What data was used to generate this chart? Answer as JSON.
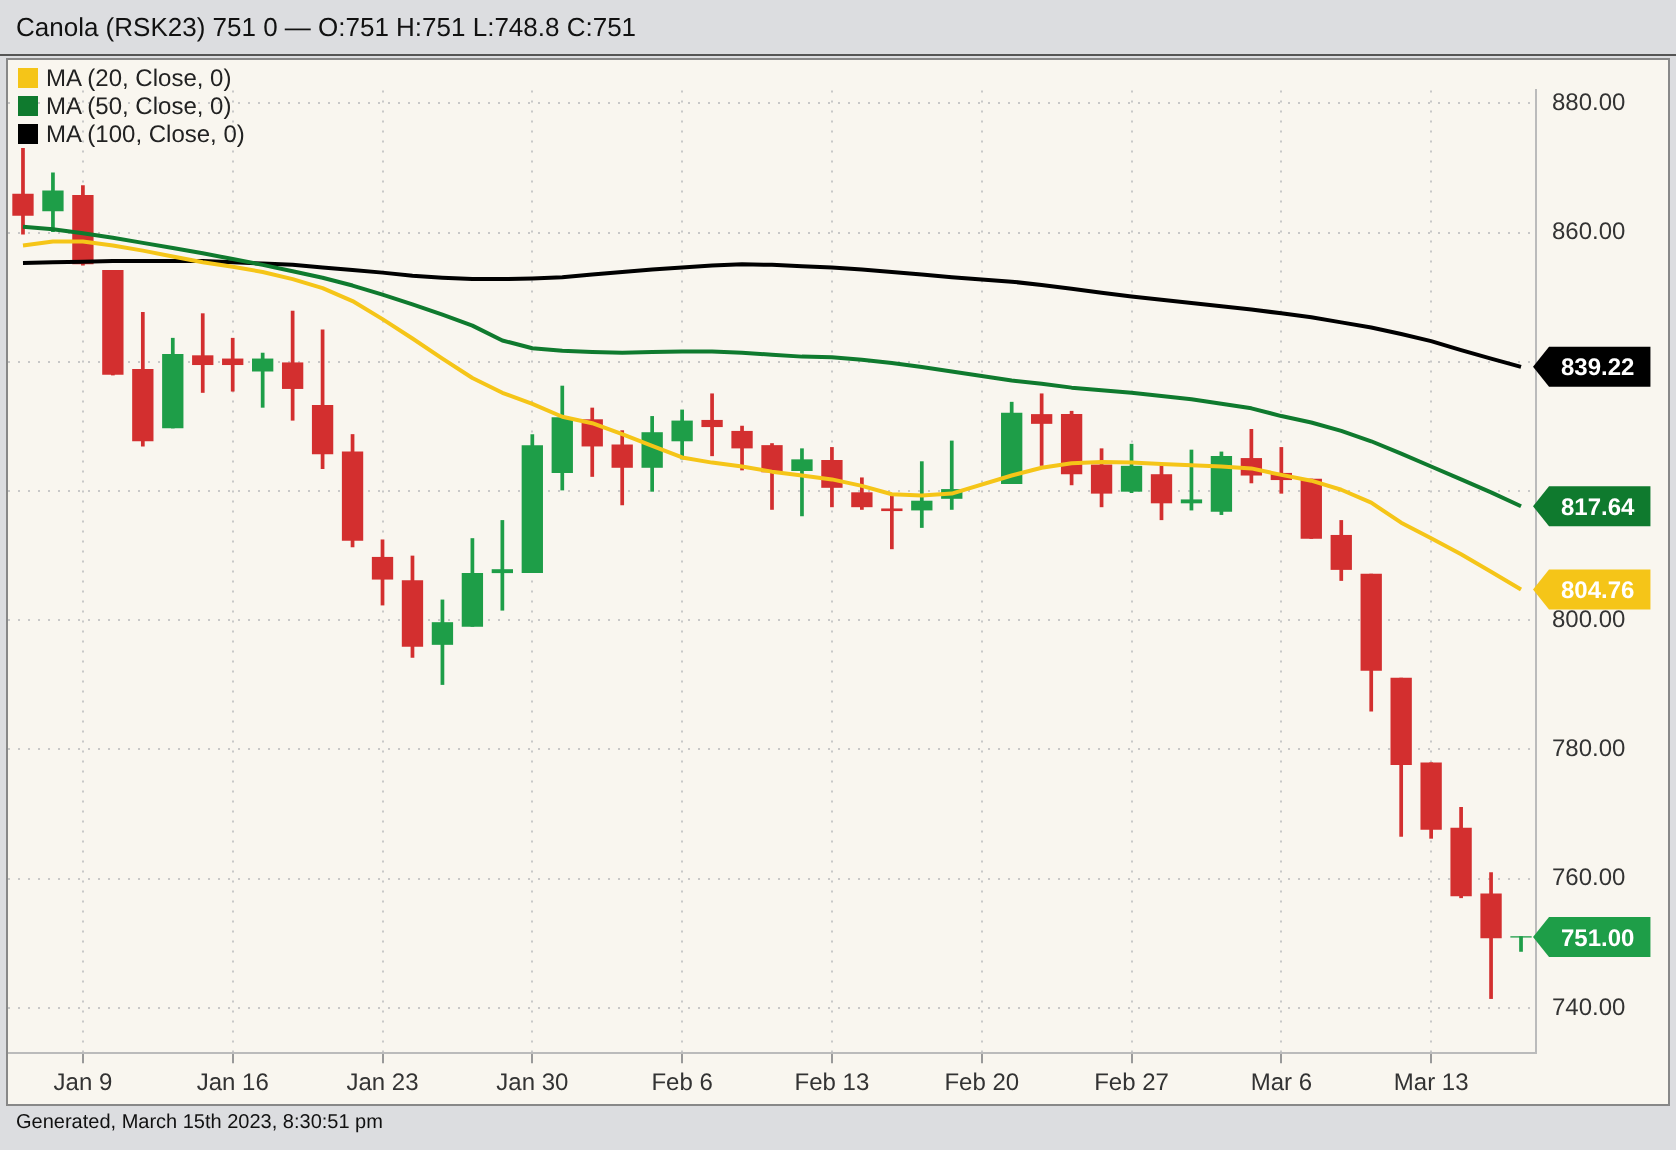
{
  "chart_data": {
    "type": "candlestick",
    "title": "Canola (RSK23) 751 0 — O:751 H:751 L:748.8 C:751",
    "categories": [
      null,
      null,
      "Jan 9",
      null,
      null,
      null,
      null,
      "Jan 16",
      null,
      null,
      null,
      null,
      "Jan 23",
      null,
      null,
      null,
      null,
      "Jan 30",
      null,
      null,
      null,
      null,
      "Feb 6",
      null,
      null,
      null,
      null,
      "Feb 13",
      null,
      null,
      null,
      null,
      "Feb 20",
      null,
      null,
      null,
      null,
      "Feb 27",
      null,
      null,
      null,
      null,
      "Mar 6",
      null,
      null,
      null,
      null,
      "Mar 13",
      null,
      null,
      null
    ],
    "ohlc": [
      [
        865.9,
        873,
        859.8,
        862.7
      ],
      [
        863.4,
        869.2,
        860.2,
        866.4
      ],
      [
        865.7,
        867.2,
        855,
        855.2
      ],
      [
        854.1,
        854.1,
        838,
        838.1
      ],
      [
        838.8,
        847.6,
        827,
        827.8
      ],
      [
        829.8,
        843.6,
        829.8,
        841.1
      ],
      [
        840.9,
        847.4,
        835.3,
        839.6
      ],
      [
        840.4,
        843.6,
        835.5,
        839.6
      ],
      [
        838.6,
        841.3,
        833,
        840.4
      ],
      [
        839.8,
        847.8,
        831,
        835.9
      ],
      [
        833.2,
        844.9,
        823.5,
        825.8
      ],
      [
        826,
        828.7,
        811.4,
        812.4
      ],
      [
        809.7,
        812.4,
        802.4,
        806.4
      ],
      [
        806.1,
        809.9,
        794.3,
        796
      ],
      [
        796.3,
        803.1,
        790.1,
        799.6
      ],
      [
        799.1,
        812.6,
        799.1,
        807.2
      ],
      [
        807.4,
        815.4,
        801.6,
        807.8
      ],
      [
        807.4,
        828.7,
        807.4,
        827
      ],
      [
        822.9,
        836.2,
        820.2,
        831.3
      ],
      [
        831,
        832.8,
        822.3,
        827
      ],
      [
        827.1,
        829.3,
        817.9,
        823.7
      ],
      [
        823.7,
        831.5,
        820,
        829
      ],
      [
        827.8,
        832.5,
        825,
        830.8
      ],
      [
        830.9,
        835,
        825.5,
        830
      ],
      [
        829.2,
        830,
        823.3,
        826.7
      ],
      [
        827,
        827.3,
        817.2,
        823
      ],
      [
        823.2,
        826.5,
        816.2,
        824.8
      ],
      [
        824.7,
        826.7,
        817.6,
        820.6
      ],
      [
        819.7,
        822,
        817.2,
        817.6
      ],
      [
        817.2,
        819.3,
        811.1,
        817
      ],
      [
        817.1,
        824.5,
        814.4,
        818.4
      ],
      [
        818.9,
        827.7,
        817.2,
        820.2
      ],
      null,
      [
        821.2,
        833.7,
        821.2,
        832
      ],
      [
        831.8,
        835,
        824,
        830.5
      ],
      [
        831.8,
        832.3,
        821,
        822.7
      ],
      [
        824,
        826.5,
        817.6,
        819.7
      ],
      [
        820,
        827.2,
        819.8,
        823.8
      ],
      [
        822.5,
        824,
        815.6,
        818.2
      ],
      [
        818.2,
        826.3,
        817.1,
        818.6
      ],
      [
        816.9,
        826,
        816.4,
        825.3
      ],
      [
        825,
        829.5,
        821.3,
        822.5
      ],
      [
        822.7,
        826.7,
        819.7,
        821.8
      ],
      [
        821.8,
        821.8,
        812.7,
        812.7
      ],
      [
        813.1,
        815.4,
        806.2,
        807.9
      ],
      [
        807.1,
        807.1,
        786,
        792.3
      ],
      [
        791,
        791,
        766.6,
        777.7
      ],
      [
        777.9,
        777.9,
        766.3,
        767.7
      ],
      [
        767.8,
        771,
        757.1,
        757.4
      ],
      [
        757.6,
        760.9,
        741.5,
        750.9
      ],
      [
        751,
        751,
        748.8,
        751
      ]
    ],
    "colors": [
      "#d32f2f",
      "#1e9e48",
      "#d32f2f",
      "#d32f2f",
      "#d32f2f",
      "#1e9e48",
      "#d32f2f",
      "#d32f2f",
      "#1e9e48",
      "#d32f2f",
      "#d32f2f",
      "#d32f2f",
      "#d32f2f",
      "#d32f2f",
      "#1e9e48",
      "#1e9e48",
      "#1e9e48",
      "#1e9e48",
      "#1e9e48",
      "#d32f2f",
      "#d32f2f",
      "#1e9e48",
      "#1e9e48",
      "#d32f2f",
      "#d32f2f",
      "#d32f2f",
      "#1e9e48",
      "#d32f2f",
      "#d32f2f",
      "#d32f2f",
      "#1e9e48",
      "#1e9e48",
      null,
      "#1e9e48",
      "#d32f2f",
      "#d32f2f",
      "#d32f2f",
      "#1e9e48",
      "#d32f2f",
      "#1e9e48",
      "#1e9e48",
      "#d32f2f",
      "#d32f2f",
      "#d32f2f",
      "#d32f2f",
      "#d32f2f",
      "#d32f2f",
      "#d32f2f",
      "#d32f2f",
      "#d32f2f",
      "#1e9e48"
    ],
    "series": [
      {
        "type": "line",
        "name": "MA (20, Close, 0)",
        "color": "#f5c518",
        "values": [
          858,
          858.6,
          858.6,
          858,
          857.2,
          856.3,
          855.4,
          854.7,
          853.9,
          852.8,
          851.4,
          849.4,
          846.6,
          843.6,
          840.5,
          837.5,
          835.2,
          833.5,
          831.5,
          830.5,
          828.8,
          827,
          825.2,
          824.4,
          823.8,
          823,
          822.4,
          821.8,
          820.8,
          819.5,
          819.3,
          819.6,
          null,
          822.4,
          823.6,
          824.3,
          824.5,
          824.4,
          824.2,
          824,
          823.8,
          823.5,
          822.5,
          821.6,
          820.2,
          818.2,
          815.1,
          812.7,
          810.2,
          807.5,
          804.76
        ],
        "value_labels": [
          null,
          null,
          null,
          null,
          null,
          null,
          null,
          null,
          null,
          null,
          null,
          null,
          null,
          null,
          null,
          null,
          null,
          null,
          null,
          null,
          null,
          null,
          null,
          null,
          null,
          null,
          null,
          null,
          null,
          null,
          null,
          null,
          null,
          null,
          null,
          null,
          null,
          null,
          null,
          null,
          null,
          null,
          null,
          null,
          null,
          null,
          null,
          null,
          null,
          null,
          "804.76"
        ]
      },
      {
        "type": "line",
        "name": "MA (50, Close, 0)",
        "color": "#0f7a2e",
        "values": [
          860.9,
          860.5,
          859.9,
          859.2,
          858.4,
          857.6,
          856.8,
          855.9,
          855,
          854,
          853,
          851.8,
          850.4,
          848.9,
          847.3,
          845.6,
          843.3,
          842.1,
          841.7,
          841.5,
          841.4,
          841.5,
          841.6,
          841.6,
          841.4,
          841.1,
          840.8,
          840.7,
          840.3,
          839.8,
          839.2,
          838.5,
          null,
          837.1,
          836.6,
          836,
          835.6,
          835.2,
          834.7,
          834.2,
          833.5,
          832.8,
          831.6,
          830.6,
          829.3,
          827.7,
          825.8,
          823.8,
          821.8,
          819.8,
          817.64
        ],
        "value_labels": [
          null,
          null,
          null,
          null,
          null,
          null,
          null,
          null,
          null,
          null,
          null,
          null,
          null,
          null,
          null,
          null,
          null,
          null,
          null,
          null,
          null,
          null,
          null,
          null,
          null,
          null,
          null,
          null,
          null,
          null,
          null,
          null,
          null,
          null,
          null,
          null,
          null,
          null,
          null,
          null,
          null,
          null,
          null,
          null,
          null,
          null,
          null,
          null,
          null,
          null,
          "817.64"
        ]
      },
      {
        "type": "line",
        "name": "MA (100, Close, 0)",
        "color": "#000000",
        "values": [
          855.3,
          855.4,
          855.5,
          855.6,
          855.6,
          855.6,
          855.6,
          855.4,
          855.2,
          855,
          854.6,
          854.2,
          853.8,
          853.3,
          853,
          852.8,
          852.8,
          852.9,
          853.1,
          853.5,
          853.9,
          854.3,
          854.6,
          854.9,
          855.1,
          855,
          854.8,
          854.6,
          854.3,
          853.9,
          853.5,
          853.1,
          null,
          852.4,
          851.9,
          851.3,
          850.7,
          850.1,
          849.6,
          849.1,
          848.6,
          848.1,
          847.5,
          846.9,
          846.1,
          845.3,
          844.3,
          843.2,
          841.8,
          840.5,
          839.22
        ],
        "value_labels": [
          null,
          null,
          null,
          null,
          null,
          null,
          null,
          null,
          null,
          null,
          null,
          null,
          null,
          null,
          null,
          null,
          null,
          null,
          null,
          null,
          null,
          null,
          null,
          null,
          null,
          null,
          null,
          null,
          null,
          null,
          null,
          null,
          null,
          null,
          null,
          null,
          null,
          null,
          null,
          null,
          null,
          null,
          null,
          null,
          null,
          null,
          null,
          null,
          null,
          null,
          "839.22"
        ]
      }
    ],
    "ylim": [
      733,
      882
    ],
    "yticks": [
      {
        "value": 740,
        "label": "740.00"
      },
      {
        "value": 760,
        "label": "760.00"
      },
      {
        "value": 780,
        "label": "780.00"
      },
      {
        "value": 800,
        "label": "800.00"
      },
      {
        "value": 820,
        "label": null
      },
      {
        "value": 840,
        "label": null
      },
      {
        "value": 860,
        "label": "860.00"
      },
      {
        "value": 880,
        "label": "880.00"
      }
    ],
    "value_labels": [
      null,
      null,
      null,
      null,
      null,
      null,
      null,
      null,
      null,
      null,
      null,
      null,
      null,
      null,
      null,
      null,
      null,
      null,
      null,
      null,
      null,
      null,
      null,
      null,
      null,
      null,
      null,
      null,
      null,
      null,
      null,
      null,
      null,
      null,
      null,
      null,
      null,
      null,
      null,
      null,
      null,
      null,
      null,
      null,
      null,
      null,
      null,
      null,
      null,
      null,
      "751.00"
    ],
    "grid": true,
    "legend": "top left",
    "annotations": [
      "Generated, March 15th 2023, 8:30:51 pm"
    ]
  }
}
